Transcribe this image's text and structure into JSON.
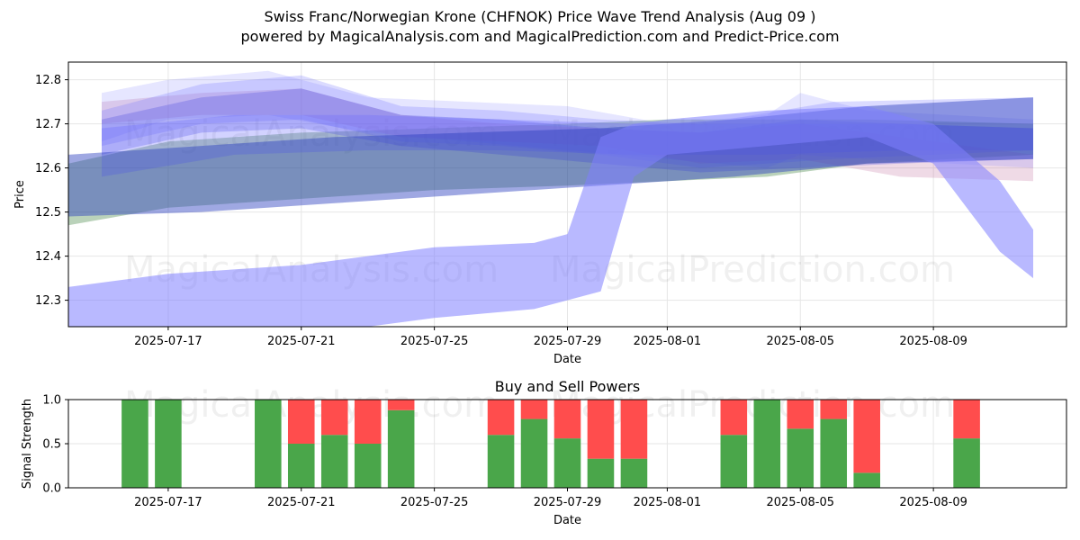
{
  "title_line1": "Swiss Franc/Norwegian Krone (CHFNOK) Price Wave Trend Analysis (Aug 09 )",
  "title_line2": "powered by MagicalAnalysis.com and MagicalPrediction.com and Predict-Price.com",
  "watermark": {
    "left": "MagicalAnalysis.com",
    "right": "MagicalPrediction.com"
  },
  "chart_data": [
    {
      "type": "area",
      "title": "",
      "xlabel": "Date",
      "ylabel": "Price",
      "x_tick_labels": [
        "2025-07-17",
        "2025-07-21",
        "2025-07-25",
        "2025-07-29",
        "2025-08-01",
        "2025-08-05",
        "2025-08-09"
      ],
      "y_tick_labels": [
        "12.3",
        "12.4",
        "12.5",
        "12.6",
        "12.7",
        "12.8"
      ],
      "xlim": [
        "2025-07-14",
        "2025-08-13"
      ],
      "ylim": [
        12.24,
        12.84
      ],
      "grid": true,
      "bands": [
        {
          "color": "#3a7d3a",
          "opacity": 0.35,
          "x": [
            "2025-07-14",
            "2025-07-17",
            "2025-07-21",
            "2025-07-25",
            "2025-07-29",
            "2025-08-01",
            "2025-08-04",
            "2025-08-07",
            "2025-08-12"
          ],
          "upper": [
            12.61,
            12.66,
            12.68,
            12.69,
            12.7,
            12.71,
            12.71,
            12.71,
            12.7
          ],
          "lower": [
            12.47,
            12.51,
            12.53,
            12.55,
            12.56,
            12.57,
            12.58,
            12.61,
            12.63
          ]
        },
        {
          "color": "#c06c9a",
          "opacity": 0.25,
          "x": [
            "2025-07-15",
            "2025-07-18",
            "2025-07-21",
            "2025-07-24",
            "2025-07-27",
            "2025-07-30",
            "2025-08-02",
            "2025-08-05",
            "2025-08-08",
            "2025-08-12"
          ],
          "upper": [
            12.75,
            12.77,
            12.78,
            12.72,
            12.7,
            12.69,
            12.68,
            12.7,
            12.67,
            12.63
          ],
          "lower": [
            12.7,
            12.72,
            12.72,
            12.67,
            12.66,
            12.65,
            12.61,
            12.62,
            12.58,
            12.57
          ]
        },
        {
          "color": "#8080ff",
          "opacity": 0.2,
          "x": [
            "2025-07-15",
            "2025-07-17",
            "2025-07-20",
            "2025-07-23",
            "2025-07-26",
            "2025-07-29",
            "2025-08-01",
            "2025-08-04",
            "2025-08-05",
            "2025-08-07",
            "2025-08-12"
          ],
          "upper": [
            12.77,
            12.8,
            12.82,
            12.76,
            12.75,
            12.74,
            12.7,
            12.72,
            12.77,
            12.73,
            12.71
          ],
          "lower": [
            12.66,
            12.71,
            12.72,
            12.68,
            12.66,
            12.64,
            12.62,
            12.6,
            12.63,
            12.62,
            12.6
          ]
        },
        {
          "color": "#7070ff",
          "opacity": 0.25,
          "x": [
            "2025-07-15",
            "2025-07-18",
            "2025-07-21",
            "2025-07-24",
            "2025-07-27",
            "2025-07-30",
            "2025-08-02",
            "2025-08-06",
            "2025-08-12"
          ],
          "upper": [
            12.73,
            12.79,
            12.81,
            12.74,
            12.73,
            12.71,
            12.7,
            12.75,
            12.76
          ],
          "lower": [
            12.65,
            12.7,
            12.71,
            12.66,
            12.65,
            12.63,
            12.6,
            12.62,
            12.64
          ]
        },
        {
          "color": "#5050e0",
          "opacity": 0.3,
          "x": [
            "2025-07-15",
            "2025-07-18",
            "2025-07-21",
            "2025-07-24",
            "2025-07-27",
            "2025-07-30",
            "2025-08-02",
            "2025-08-05",
            "2025-08-08",
            "2025-08-12"
          ],
          "upper": [
            12.71,
            12.76,
            12.78,
            12.72,
            12.71,
            12.69,
            12.68,
            12.71,
            12.7,
            12.69
          ],
          "lower": [
            12.63,
            12.68,
            12.69,
            12.65,
            12.63,
            12.61,
            12.59,
            12.6,
            12.61,
            12.62
          ]
        },
        {
          "color": "#6a6aff",
          "opacity": 0.3,
          "x": [
            "2025-07-15",
            "2025-07-19",
            "2025-07-23",
            "2025-07-27",
            "2025-07-31",
            "2025-08-04",
            "2025-08-08",
            "2025-08-12"
          ],
          "upper": [
            12.69,
            12.72,
            12.72,
            12.71,
            12.7,
            12.7,
            12.7,
            12.69
          ],
          "lower": [
            12.58,
            12.63,
            12.64,
            12.64,
            12.63,
            12.63,
            12.64,
            12.64
          ]
        },
        {
          "color": "#2a3fbf",
          "opacity": 0.45,
          "x": [
            "2025-07-14",
            "2025-07-18",
            "2025-07-22",
            "2025-07-26",
            "2025-07-30",
            "2025-08-03",
            "2025-08-07",
            "2025-08-12"
          ],
          "upper": [
            12.63,
            12.65,
            12.67,
            12.68,
            12.69,
            12.71,
            12.74,
            12.76
          ],
          "lower": [
            12.49,
            12.5,
            12.52,
            12.54,
            12.56,
            12.58,
            12.61,
            12.62
          ]
        },
        {
          "color": "#8080ff",
          "opacity": 0.55,
          "x": [
            "2025-07-14",
            "2025-07-17",
            "2025-07-21",
            "2025-07-25",
            "2025-07-28",
            "2025-07-29",
            "2025-07-30",
            "2025-07-31",
            "2025-08-01",
            "2025-08-04",
            "2025-08-07",
            "2025-08-09",
            "2025-08-11",
            "2025-08-12"
          ],
          "upper": [
            12.33,
            12.36,
            12.38,
            12.42,
            12.43,
            12.45,
            12.67,
            12.7,
            12.71,
            12.73,
            12.74,
            12.7,
            12.57,
            12.46
          ],
          "lower": [
            12.22,
            12.22,
            12.22,
            12.26,
            12.28,
            12.3,
            12.32,
            12.58,
            12.63,
            12.65,
            12.67,
            12.61,
            12.41,
            12.35
          ]
        }
      ]
    },
    {
      "type": "bar",
      "title": "Buy and Sell Powers",
      "xlabel": "Date",
      "ylabel": "Signal Strength",
      "x_tick_labels": [
        "2025-07-17",
        "2025-07-21",
        "2025-07-25",
        "2025-07-29",
        "2025-08-01",
        "2025-08-05",
        "2025-08-09"
      ],
      "y_tick_labels": [
        "0.0",
        "0.5",
        "1.0"
      ],
      "ylim": [
        0,
        1
      ],
      "xlim": [
        "2025-07-14",
        "2025-08-13"
      ],
      "grid": true,
      "buy_color": "#4aa64a",
      "sell_color": "#ff4d4d",
      "categories": [
        "2025-07-16",
        "2025-07-17",
        "2025-07-20",
        "2025-07-21",
        "2025-07-22",
        "2025-07-23",
        "2025-07-24",
        "2025-07-27",
        "2025-07-28",
        "2025-07-29",
        "2025-07-30",
        "2025-07-31",
        "2025-08-03",
        "2025-08-04",
        "2025-08-05",
        "2025-08-06",
        "2025-08-07",
        "2025-08-10"
      ],
      "series": [
        {
          "name": "",
          "values": [
            1.0,
            1.0,
            1.0,
            0.5,
            0.6,
            0.5,
            0.88,
            0.6,
            0.78,
            0.56,
            0.33,
            0.33,
            0.6,
            1.0,
            0.67,
            0.78,
            0.17,
            0.56
          ]
        },
        {
          "name": "",
          "values": [
            0.0,
            0.0,
            0.0,
            0.5,
            0.4,
            0.5,
            0.12,
            0.4,
            0.22,
            0.44,
            0.67,
            0.67,
            0.4,
            0.0,
            0.33,
            0.22,
            0.83,
            0.44
          ]
        }
      ]
    }
  ]
}
